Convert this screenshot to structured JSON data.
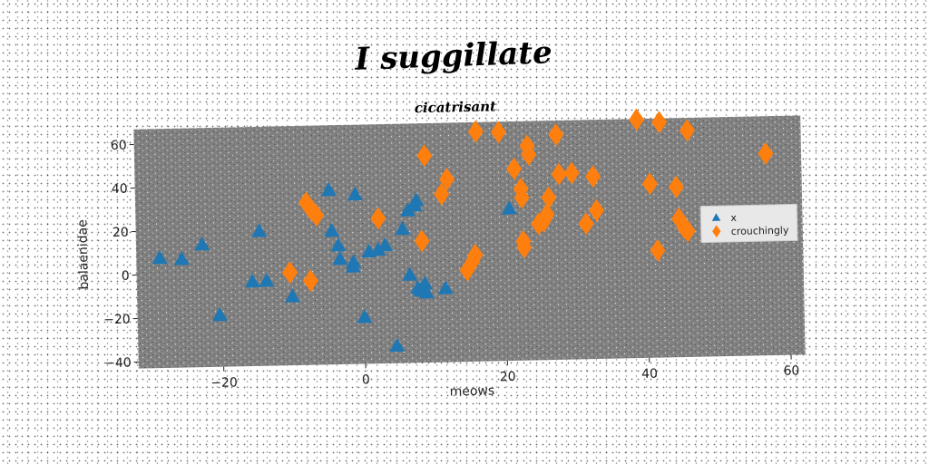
{
  "chart_data": {
    "type": "scatter",
    "suptitle": "I suggillate",
    "title": "cicatrisant",
    "xlabel": "meows",
    "ylabel": "balaenidae",
    "xlim": [
      -32,
      62
    ],
    "ylim": [
      -43,
      67
    ],
    "x_ticks": [
      -20,
      0,
      20,
      40,
      60
    ],
    "y_ticks": [
      -40,
      -20,
      0,
      20,
      40,
      60
    ],
    "x_tick_labels": [
      "−20",
      "0",
      "20",
      "40",
      "60"
    ],
    "y_tick_labels": [
      "−40",
      "−20",
      "0",
      "20",
      "40",
      "60"
    ],
    "grid": false,
    "legend_position": "center-right",
    "plot_background": "#808080",
    "series": [
      {
        "name": "x",
        "marker": "triangle",
        "color": "#1f77b4",
        "points": [
          [
            -28.7,
            7.5
          ],
          [
            -25.6,
            6.8
          ],
          [
            -22.7,
            13.3
          ],
          [
            -20.4,
            -19.3
          ],
          [
            -14.6,
            18.9
          ],
          [
            -15.7,
            -4.2
          ],
          [
            -13.7,
            -4.0
          ],
          [
            -10.1,
            -11.4
          ],
          [
            -4.7,
            37.1
          ],
          [
            -4.4,
            18.3
          ],
          [
            -3.5,
            11.6
          ],
          [
            -3.3,
            5.3
          ],
          [
            -1.5,
            1.7
          ],
          [
            -1.4,
            3.8
          ],
          [
            -1.0,
            34.8
          ],
          [
            0.0,
            -21.6
          ],
          [
            0.8,
            8.5
          ],
          [
            2.1,
            9.2
          ],
          [
            3.1,
            11.2
          ],
          [
            4.5,
            -35.1
          ],
          [
            5.6,
            18.5
          ],
          [
            6.4,
            27.0
          ],
          [
            6.5,
            -2.6
          ],
          [
            7.4,
            29.2
          ],
          [
            7.6,
            31.6
          ],
          [
            7.6,
            -8.7
          ],
          [
            8.0,
            -10.0
          ],
          [
            8.6,
            -6.8
          ],
          [
            8.8,
            -10.9
          ],
          [
            11.5,
            -9.2
          ],
          [
            20.7,
            26.9
          ]
        ]
      },
      {
        "name": "crouchingly",
        "marker": "diamond",
        "color": "#ff7f0e",
        "points": [
          [
            -10.4,
            -0.3
          ],
          [
            -7.9,
            31.6
          ],
          [
            -7.5,
            -4.3
          ],
          [
            -7.2,
            28.3
          ],
          [
            -6.5,
            25.7
          ],
          [
            2.2,
            23.7
          ],
          [
            8.3,
            12.9
          ],
          [
            8.9,
            52.1
          ],
          [
            11.2,
            34.2
          ],
          [
            12.0,
            41.1
          ],
          [
            14.6,
            -1.0
          ],
          [
            15.4,
            3.1
          ],
          [
            15.8,
            6.0
          ],
          [
            16.2,
            62.7
          ],
          [
            19.4,
            62.2
          ],
          [
            21.5,
            45.2
          ],
          [
            22.4,
            35.9
          ],
          [
            22.5,
            31.9
          ],
          [
            22.6,
            11.8
          ],
          [
            22.7,
            9.0
          ],
          [
            23.4,
            55.6
          ],
          [
            23.6,
            51.6
          ],
          [
            24.8,
            19.6
          ],
          [
            25.5,
            20.8
          ],
          [
            26.0,
            23.9
          ],
          [
            26.3,
            31.6
          ],
          [
            27.5,
            60.5
          ],
          [
            27.8,
            42.3
          ],
          [
            29.6,
            42.7
          ],
          [
            31.5,
            19.3
          ],
          [
            32.6,
            40.9
          ],
          [
            33.0,
            25.3
          ],
          [
            38.9,
            66.6
          ],
          [
            40.6,
            37.0
          ],
          [
            41.5,
            6.3
          ],
          [
            42.1,
            65.2
          ],
          [
            44.3,
            35.3
          ],
          [
            44.6,
            20.7
          ],
          [
            45.3,
            16.5
          ],
          [
            45.8,
            14.9
          ],
          [
            46.0,
            61.2
          ],
          [
            57.0,
            49.8
          ]
        ]
      }
    ]
  }
}
